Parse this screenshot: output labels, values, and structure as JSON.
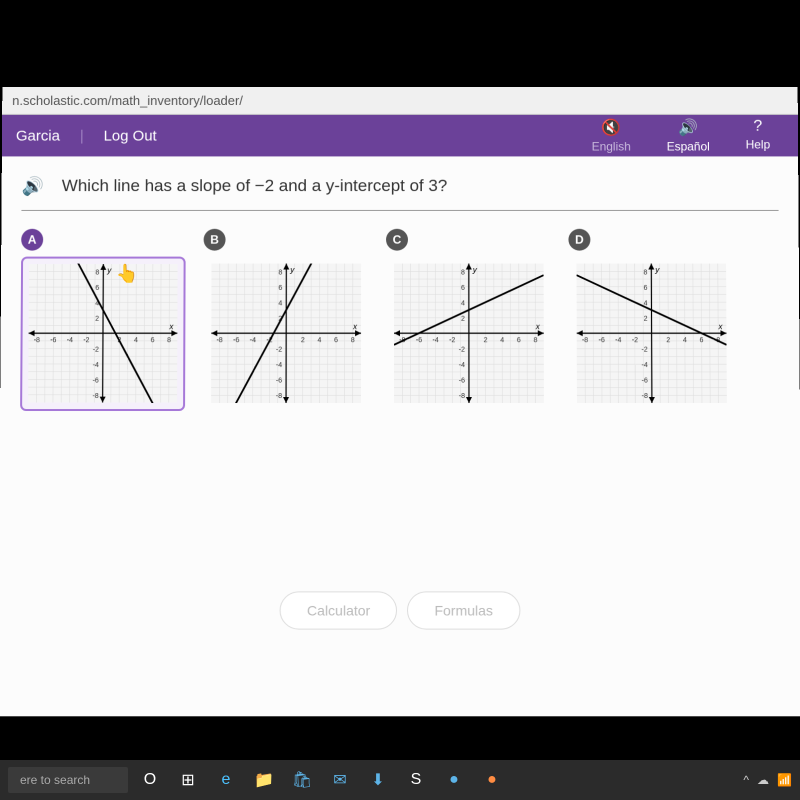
{
  "url": "n.scholastic.com/math_inventory/loader/",
  "header": {
    "user": "Garcia",
    "logout": "Log Out",
    "english": "English",
    "espanol": "Español",
    "help": "Help"
  },
  "question": "Which line has a slope of −2 and a y-intercept of 3?",
  "options": {
    "a": {
      "label": "A",
      "selected": true
    },
    "b": {
      "label": "B",
      "selected": false
    },
    "c": {
      "label": "C",
      "selected": false
    },
    "d": {
      "label": "D",
      "selected": false
    }
  },
  "graph": {
    "axis_labels": {
      "x": "x",
      "y": "y"
    },
    "xlim": [
      -9,
      9
    ],
    "ylim": [
      -9,
      9
    ],
    "ticks": [
      -8,
      -6,
      -4,
      -2,
      2,
      4,
      6,
      8
    ],
    "ytick_labels_pos": [
      2,
      4,
      6,
      8
    ],
    "ytick_labels_neg": [
      -2,
      -4,
      -6,
      -8
    ],
    "xtick_labels_neg": [
      -8,
      -6,
      -4,
      -2
    ],
    "xtick_labels_pos": [
      2,
      4,
      6,
      8
    ],
    "grid_color": "#dcdcdc",
    "axis_color": "#000000",
    "line_color": "#000000",
    "line_width": 1.8,
    "bg": "#f5f5f5",
    "lines": {
      "a": {
        "slope": -2,
        "intercept": 3
      },
      "b": {
        "slope": 2,
        "intercept": 3
      },
      "c": {
        "slope": 0.5,
        "intercept": 3
      },
      "d": {
        "slope": -0.5,
        "intercept": 3
      }
    }
  },
  "buttons": {
    "calculator": "Calculator",
    "formulas": "Formulas"
  },
  "taskbar": {
    "search": "ere to search"
  },
  "colors": {
    "header_bg": "#6b4199",
    "selected_border": "#a678d8",
    "content_bg": "#fcfcfc"
  }
}
